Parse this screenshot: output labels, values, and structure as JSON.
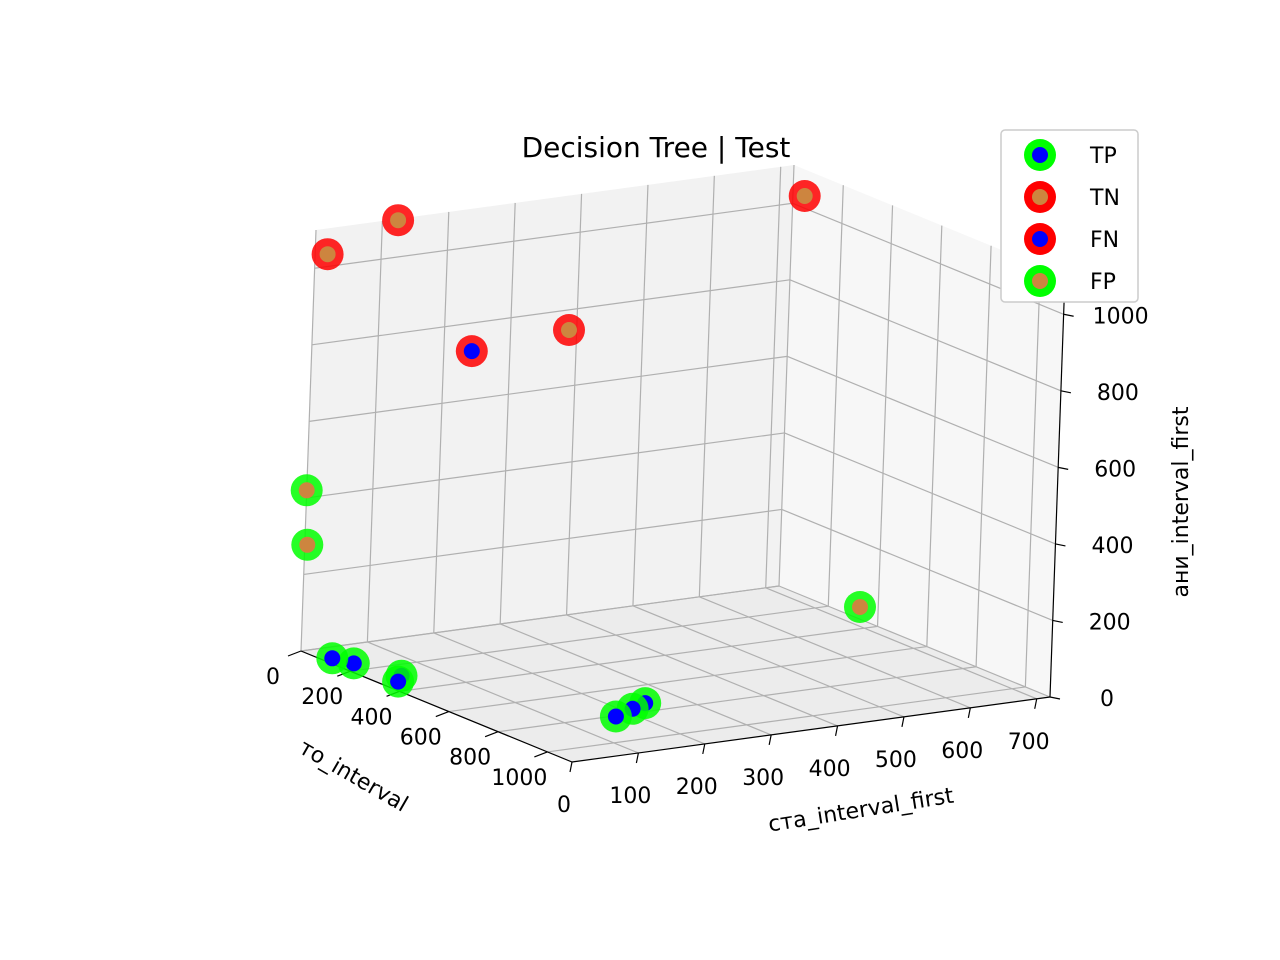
{
  "chart_data": {
    "type": "scatter3d",
    "title": "Decision Tree | Test",
    "xlabel": "ста_interval_first",
    "ylabel": "то_interval",
    "zlabel": "ани_interval_first",
    "xlim": [
      0,
      720
    ],
    "ylim": [
      0,
      1100
    ],
    "zlim": [
      0,
      1100
    ],
    "xticks": [
      0,
      100,
      200,
      300,
      400,
      500,
      600,
      700
    ],
    "yticks": [
      0,
      200,
      400,
      600,
      800,
      1000
    ],
    "zticks": [
      0,
      200,
      400,
      600,
      800,
      1000
    ],
    "grid": true,
    "legend_position": "top-right",
    "series": [
      {
        "name": "TP",
        "edge_color": "#00ff00",
        "face_color": "#0000ff",
        "points": [
          {
            "x": 240,
            "y": 750,
            "z": 5
          },
          {
            "x": 210,
            "y": 780,
            "z": 5
          },
          {
            "x": 170,
            "y": 820,
            "z": 5
          },
          {
            "x": 40,
            "y": 300,
            "z": 5
          },
          {
            "x": 20,
            "y": 340,
            "z": 5
          },
          {
            "x": 20,
            "y": 160,
            "z": 5
          },
          {
            "x": 10,
            "y": 100,
            "z": 5
          }
        ]
      },
      {
        "name": "TN",
        "edge_color": "#ff0000",
        "face_color": "#cd853f",
        "points": [
          {
            "x": 700,
            "y": 100,
            "z": 1050
          },
          {
            "x": 0,
            "y": 50,
            "z": 1050
          },
          {
            "x": 120,
            "y": 10,
            "z": 1100
          },
          {
            "x": 10,
            "y": 1000,
            "z": 1100
          }
        ]
      },
      {
        "name": "FN",
        "edge_color": "#ff0000",
        "face_color": "#0000ff",
        "points": [
          {
            "x": 110,
            "y": 350,
            "z": 850
          }
        ]
      },
      {
        "name": "FP",
        "edge_color": "#00ff00",
        "face_color": "#cd853f",
        "points": [
          {
            "x": 700,
            "y": 380,
            "z": 50
          },
          {
            "x": 0,
            "y": 0,
            "z": 420
          },
          {
            "x": 0,
            "y": 10,
            "z": 280
          }
        ]
      }
    ]
  }
}
